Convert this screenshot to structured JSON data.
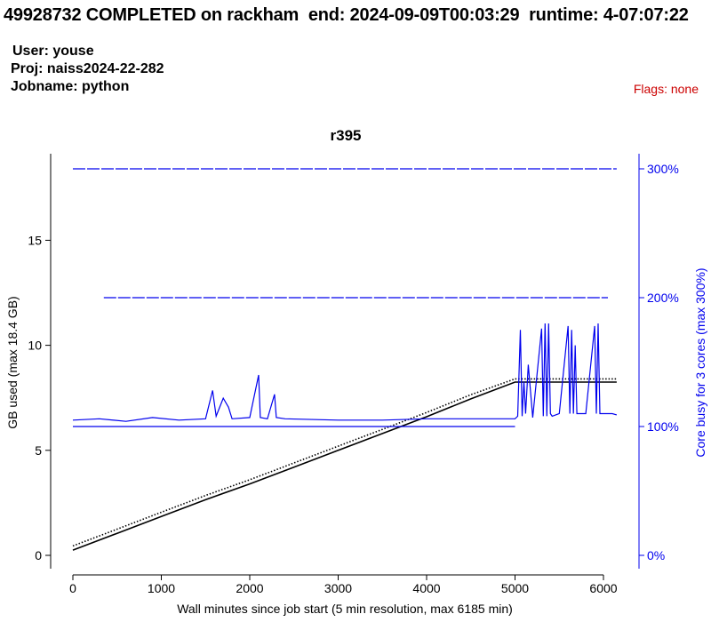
{
  "header": {
    "title": "49928732 COMPLETED on rackham  end: 2024-09-09T00:03:29  runtime: 4-07:07:22",
    "user": "User: youse",
    "project": "Proj: naiss2024-22-282",
    "jobname": "Jobname: python",
    "flags": "Flags: none"
  },
  "colors": {
    "memory": "#000000",
    "cpu": "#0000ee",
    "flags": "#cc0000"
  },
  "chart_data": {
    "type": "line",
    "title": "r395",
    "xlabel": "Wall minutes since job start (5 min resolution, max 6185 min)",
    "ylabel_left": "GB used (max 18.4 GB)",
    "ylabel_right": "Core busy for 3 cores (max 300%)",
    "xlim": [
      0,
      6185
    ],
    "ylim_left": [
      0,
      18.4
    ],
    "ylim_right": [
      0,
      300
    ],
    "x_ticks": [
      "0",
      "1000",
      "2000",
      "3000",
      "4000",
      "5000",
      "6000"
    ],
    "y_left_ticks": [
      "0",
      "5",
      "10",
      "15"
    ],
    "y_right_ticks": [
      "0%",
      "100%",
      "200%",
      "300%"
    ],
    "series": [
      {
        "axis": "left",
        "style": "solid",
        "x": [
          0,
          500,
          1000,
          1500,
          2000,
          2500,
          3000,
          3500,
          4000,
          4500,
          5000,
          5050,
          6150
        ],
        "y": [
          0.25,
          1.05,
          1.85,
          2.65,
          3.4,
          4.2,
          5.0,
          5.8,
          6.6,
          7.45,
          8.25,
          8.25,
          8.25
        ]
      },
      {
        "axis": "left",
        "style": "dotted",
        "x": [
          0,
          500,
          1000,
          1500,
          2000,
          2500,
          3000,
          3500,
          4000,
          4500,
          5000,
          6150
        ],
        "y": [
          0.45,
          1.25,
          2.05,
          2.85,
          3.6,
          4.4,
          5.2,
          6.0,
          6.8,
          7.65,
          8.4,
          8.4
        ]
      },
      {
        "axis": "right",
        "style": "dashed",
        "x": [
          0,
          1000,
          2000,
          3000,
          4000,
          5000,
          6150
        ],
        "y": [
          300,
          300,
          300,
          300,
          300,
          300,
          300
        ]
      },
      {
        "axis": "right",
        "style": "dashed",
        "x": [
          350,
          1000,
          2000,
          3000,
          4000,
          5000,
          6050
        ],
        "y": [
          200,
          200,
          200,
          200,
          200,
          200,
          200
        ]
      },
      {
        "axis": "right",
        "style": "solid",
        "x": [
          0,
          1000,
          1570,
          1620,
          2000,
          3000,
          4000,
          5000
        ],
        "y": [
          100,
          100,
          100,
          100,
          100,
          100,
          100,
          100
        ]
      },
      {
        "axis": "right",
        "style": "solid",
        "x": [
          0,
          300,
          600,
          900,
          1200,
          1500,
          1580,
          1620,
          1700,
          1760,
          1800,
          2000,
          2100,
          2120,
          2200,
          2280,
          2300,
          2400,
          3000,
          3500,
          4000,
          4500,
          5000,
          5030,
          5060,
          5080,
          5100,
          5120,
          5150,
          5200,
          5300,
          5320,
          5340,
          5360,
          5380,
          5400,
          5420,
          5500,
          5600,
          5620,
          5640,
          5660,
          5680,
          5700,
          5800,
          5900,
          5920,
          5940,
          5960,
          6000,
          6100,
          6150
        ],
        "y": [
          105,
          106,
          104,
          107,
          105,
          106,
          128,
          108,
          122,
          115,
          106,
          107,
          140,
          107,
          106,
          125,
          107,
          106,
          105,
          105,
          106,
          106,
          106,
          108,
          175,
          108,
          135,
          110,
          148,
          107,
          176,
          108,
          180,
          108,
          180,
          110,
          108,
          110,
          178,
          110,
          175,
          110,
          163,
          110,
          110,
          178,
          110,
          180,
          110,
          110,
          110,
          109
        ]
      }
    ]
  }
}
